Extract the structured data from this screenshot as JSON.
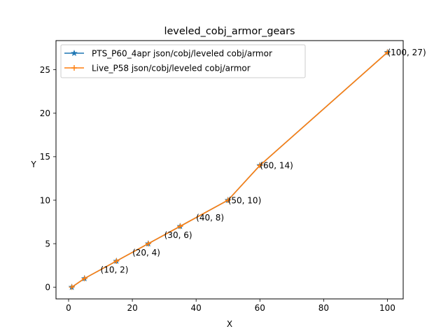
{
  "chart_data": {
    "type": "line",
    "title": "leveled_cobj_armor_gears",
    "xlabel": "X",
    "ylabel": "Y",
    "xlim": [
      -3.95,
      104.95
    ],
    "ylim": [
      -1.35,
      28.35
    ],
    "x_ticks": [
      0,
      20,
      40,
      60,
      80,
      100
    ],
    "y_ticks": [
      0,
      5,
      10,
      15,
      20,
      25
    ],
    "grid": false,
    "legend_position": "top-left",
    "series": [
      {
        "name": "PTS_P60_4apr json/cobj/leveled cobj/armor",
        "color": "#1f77b4",
        "marker": "star",
        "x": [
          1,
          5,
          15,
          25,
          35,
          50,
          60,
          100
        ],
        "y": [
          0,
          1,
          3,
          5,
          7,
          10,
          14,
          27
        ]
      },
      {
        "name": "Live_P58 json/cobj/leveled cobj/armor",
        "color": "#ff7f0e",
        "marker": "plus",
        "x": [
          1,
          5,
          15,
          25,
          35,
          50,
          60,
          100
        ],
        "y": [
          0,
          1,
          3,
          5,
          7,
          10,
          14,
          27
        ]
      }
    ],
    "annotations": [
      {
        "text": "(10, 2)",
        "x": 10,
        "y": 2
      },
      {
        "text": "(20, 4)",
        "x": 20,
        "y": 4
      },
      {
        "text": "(30, 6)",
        "x": 30,
        "y": 6
      },
      {
        "text": "(40, 8)",
        "x": 40,
        "y": 8
      },
      {
        "text": "(50, 10)",
        "x": 50,
        "y": 10
      },
      {
        "text": "(60, 14)",
        "x": 60,
        "y": 14
      },
      {
        "text": "(100, 27)",
        "x": 100,
        "y": 27
      }
    ]
  }
}
